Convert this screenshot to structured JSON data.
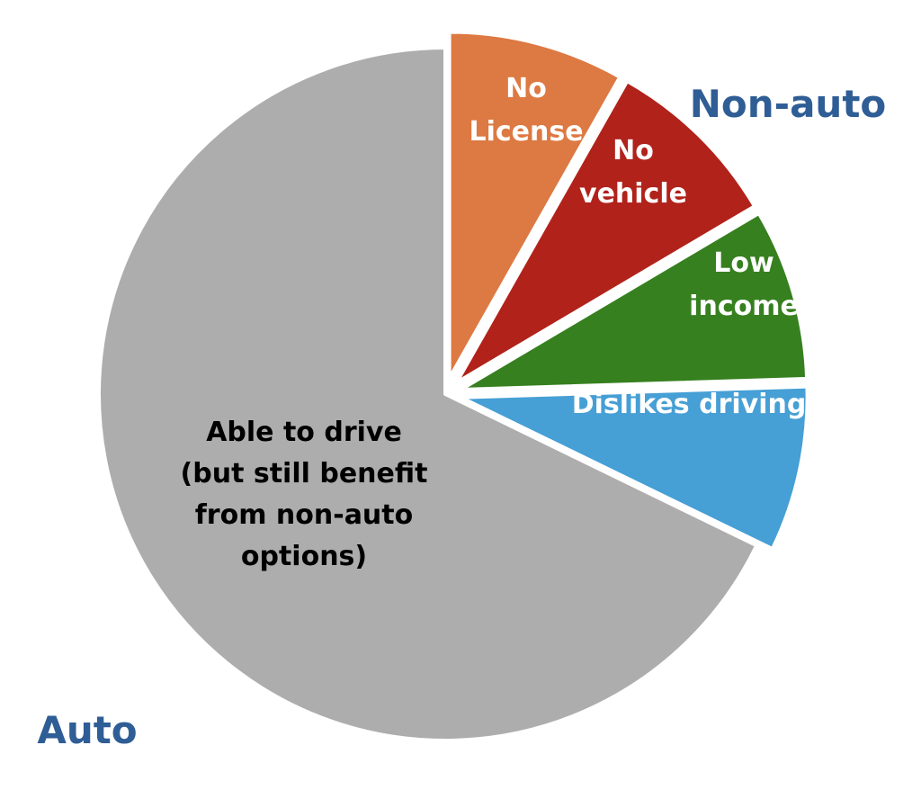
{
  "chart_data": {
    "type": "pie",
    "title": "",
    "start": "top",
    "direction": "clockwise",
    "slices": [
      {
        "label": [
          "No",
          "License"
        ],
        "value": 8.2,
        "color": "#dd7942",
        "text_color": "#ffffff",
        "exploded": true
      },
      {
        "label": [
          "No",
          "vehicle"
        ],
        "value": 8.3,
        "color": "#b1221a",
        "text_color": "#ffffff",
        "exploded": true
      },
      {
        "label": [
          "Low",
          "income"
        ],
        "value": 8.0,
        "color": "#36801f",
        "text_color": "#ffffff",
        "exploded": true
      },
      {
        "label": [
          "Dislikes driving"
        ],
        "value": 7.7,
        "color": "#469fd5",
        "text_color": "#ffffff",
        "exploded": true
      },
      {
        "label": [
          "Able to drive",
          "(but still benefit",
          "from non-auto",
          "options)"
        ],
        "value": 67.8,
        "color": "#adadad",
        "text_color": "#000000",
        "exploded": false
      }
    ],
    "group_labels": [
      {
        "text": "Non-auto",
        "color": "#2f5d95"
      },
      {
        "text": "Auto",
        "color": "#2f5d95"
      }
    ]
  }
}
